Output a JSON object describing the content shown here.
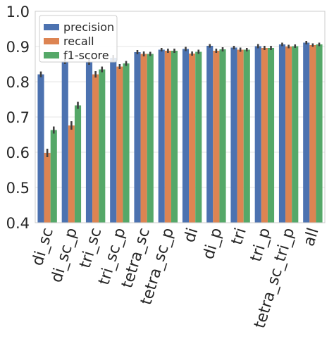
{
  "chart_data": {
    "type": "bar",
    "categories": [
      "di_sc",
      "di_sc_p",
      "tri_sc",
      "tri_sc_p",
      "tetra_sc",
      "tetra_sc_p",
      "di",
      "di_p",
      "tri",
      "tri_p",
      "tetra_sc_tri_p",
      "all"
    ],
    "series": [
      {
        "name": "precision",
        "color": "#4c72b0",
        "values": [
          0.821,
          0.858,
          0.856,
          0.868,
          0.884,
          0.891,
          0.893,
          0.902,
          0.897,
          0.901,
          0.906,
          0.911
        ]
      },
      {
        "name": "recall",
        "color": "#dd8452",
        "values": [
          0.598,
          0.676,
          0.821,
          0.843,
          0.879,
          0.888,
          0.88,
          0.888,
          0.891,
          0.896,
          0.9,
          0.904
        ]
      },
      {
        "name": "f1-score",
        "color": "#55a868",
        "values": [
          0.663,
          0.733,
          0.835,
          0.852,
          0.879,
          0.888,
          0.885,
          0.892,
          0.891,
          0.896,
          0.901,
          0.906
        ]
      }
    ],
    "error": [
      [
        0.008,
        0.008,
        0.008,
        0.008,
        0.006,
        0.005,
        0.006,
        0.005,
        0.005,
        0.006,
        0.005,
        0.005
      ],
      [
        0.012,
        0.012,
        0.009,
        0.007,
        0.007,
        0.006,
        0.006,
        0.006,
        0.006,
        0.006,
        0.005,
        0.005
      ],
      [
        0.01,
        0.01,
        0.008,
        0.007,
        0.006,
        0.006,
        0.006,
        0.006,
        0.005,
        0.006,
        0.005,
        0.005
      ]
    ],
    "ylim": [
      0.4,
      1.0
    ],
    "yticks": [
      "0.4",
      "0.5",
      "0.6",
      "0.7",
      "0.8",
      "0.9",
      "1.0"
    ],
    "grid": "horizontal",
    "legend_position": "upper-left",
    "title": "",
    "xlabel": "",
    "ylabel": ""
  }
}
